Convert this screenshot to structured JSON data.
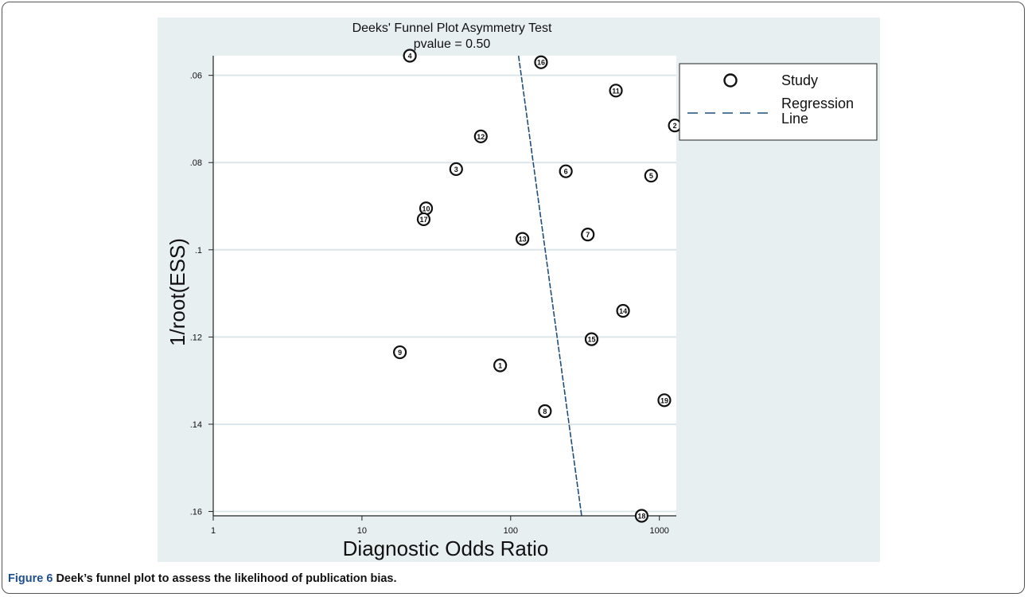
{
  "figure": {
    "caption_label": "Figure 6",
    "caption_text": "Deek’s funnel plot to assess the likelihood of publication bias."
  },
  "colors": {
    "panel_background": "#e8eff1",
    "plot_background": "#ffffff",
    "grid": "#dce6ea",
    "regression_line": "#1f4e79",
    "marker": "#111111"
  },
  "chart_data": {
    "type": "scatter",
    "title": "Deeks' Funnel Plot Asymmetry Test",
    "subtitle": "pvalue  =  0.50",
    "xlabel": "Diagnostic Odds Ratio",
    "ylabel": "1/root(ESS)",
    "x_scale": "log",
    "xlim": [
      1,
      1300
    ],
    "ylim": [
      0.0555,
      0.161
    ],
    "y_reversed": true,
    "x_ticks": [
      1,
      10,
      100,
      1000
    ],
    "x_tick_labels": [
      "1",
      "10",
      "100",
      "1000"
    ],
    "y_ticks": [
      0.06,
      0.08,
      0.1,
      0.12,
      0.14,
      0.16
    ],
    "y_tick_labels": [
      ".06",
      ".08",
      ".1",
      ".12",
      ".14",
      ".16"
    ],
    "grid": true,
    "legend_position": "right",
    "legend": [
      {
        "label": "Study",
        "symbol": "circle"
      },
      {
        "label": "Regression\nLine",
        "symbol": "dashed-line"
      }
    ],
    "series": [
      {
        "name": "Study",
        "points": [
          {
            "label": "1",
            "x": 85,
            "y": 0.1265
          },
          {
            "label": "2",
            "x": 1270,
            "y": 0.0715
          },
          {
            "label": "3",
            "x": 43,
            "y": 0.0815
          },
          {
            "label": "4",
            "x": 21,
            "y": 0.0555
          },
          {
            "label": "5",
            "x": 880,
            "y": 0.083
          },
          {
            "label": "6",
            "x": 235,
            "y": 0.082
          },
          {
            "label": "7",
            "x": 330,
            "y": 0.0965
          },
          {
            "label": "8",
            "x": 170,
            "y": 0.137
          },
          {
            "label": "9",
            "x": 18,
            "y": 0.1235
          },
          {
            "label": "10",
            "x": 27,
            "y": 0.0905
          },
          {
            "label": "11",
            "x": 510,
            "y": 0.0635
          },
          {
            "label": "12",
            "x": 63,
            "y": 0.074
          },
          {
            "label": "13",
            "x": 120,
            "y": 0.0975
          },
          {
            "label": "14",
            "x": 570,
            "y": 0.114
          },
          {
            "label": "15",
            "x": 350,
            "y": 0.1205
          },
          {
            "label": "16",
            "x": 160,
            "y": 0.057
          },
          {
            "label": "17",
            "x": 26,
            "y": 0.093
          },
          {
            "label": "18",
            "x": 760,
            "y": 0.161
          },
          {
            "label": "19",
            "x": 1080,
            "y": 0.1345
          }
        ]
      },
      {
        "name": "Regression Line",
        "points": [
          {
            "x": 113,
            "y": 0.0555
          },
          {
            "x": 300,
            "y": 0.161
          }
        ]
      }
    ]
  }
}
